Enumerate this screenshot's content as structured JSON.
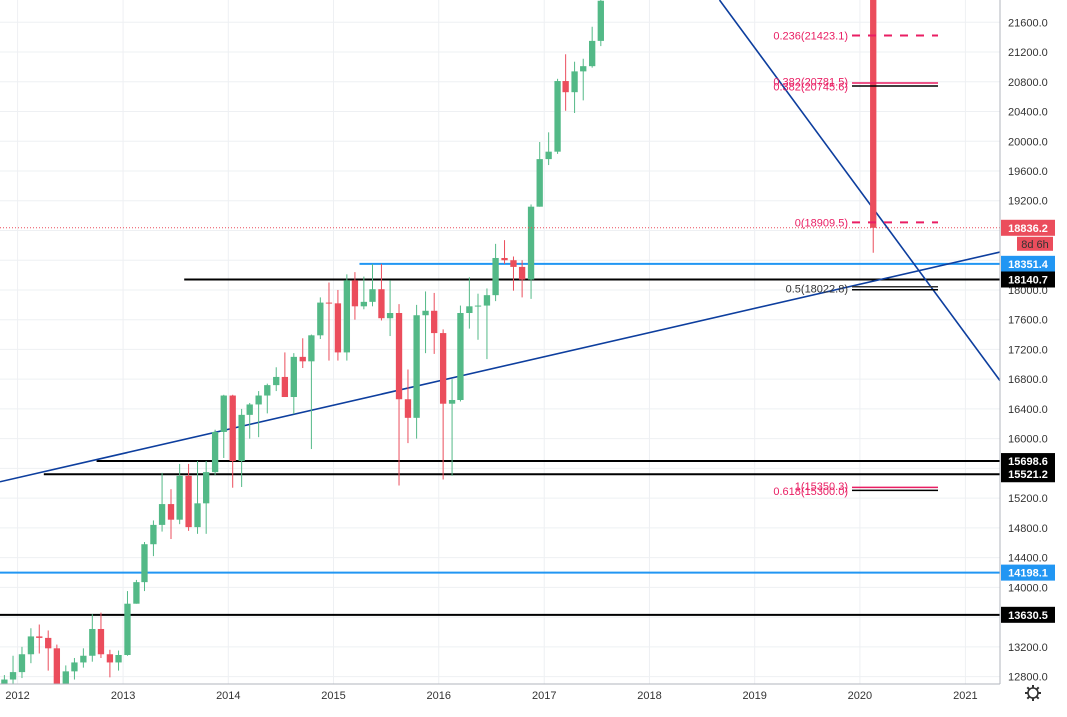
{
  "chart_data": {
    "type": "candlestick",
    "title": "",
    "x_range": [
      "2011-11-01",
      "2021-05-01"
    ],
    "y_range": [
      12700,
      21900
    ],
    "x_ticks": [
      {
        "label": "2012",
        "date": "2012-01-01"
      },
      {
        "label": "2013",
        "date": "2013-01-01"
      },
      {
        "label": "2014",
        "date": "2014-01-01"
      },
      {
        "label": "2015",
        "date": "2015-01-01"
      },
      {
        "label": "2016",
        "date": "2016-01-01"
      },
      {
        "label": "2017",
        "date": "2017-01-01"
      },
      {
        "label": "2018",
        "date": "2018-01-01"
      },
      {
        "label": "2019",
        "date": "2019-01-01"
      },
      {
        "label": "2020",
        "date": "2020-01-01"
      },
      {
        "label": "2021",
        "date": "2021-01-01"
      }
    ],
    "y_ticks": [
      "12800.0",
      "13200.0",
      "13600.0",
      "14000.0",
      "14400.0",
      "14800.0",
      "15200.0",
      "15600.0",
      "16000.0",
      "16400.0",
      "16800.0",
      "17200.0",
      "17600.0",
      "18000.0",
      "18400.0",
      "18800.0",
      "19200.0",
      "19600.0",
      "20000.0",
      "20400.0",
      "20800.0",
      "21200.0",
      "21600.0"
    ],
    "grid": true,
    "colors": {
      "up": "#53b987",
      "down": "#eb4d5c",
      "trend": "#0d3e9e",
      "level_blue": "#2196f3",
      "level_black": "#000000",
      "fib": "#e91e63"
    },
    "candles": [
      {
        "date": "2011-11-01",
        "o": 12450,
        "h": 12820,
        "l": 12350,
        "c": 12760
      },
      {
        "date": "2011-12-01",
        "o": 12760,
        "h": 13080,
        "l": 12500,
        "c": 12860
      },
      {
        "date": "2012-01-01",
        "o": 12860,
        "h": 13200,
        "l": 12780,
        "c": 13100
      },
      {
        "date": "2012-02-01",
        "o": 13100,
        "h": 13450,
        "l": 12980,
        "c": 13340
      },
      {
        "date": "2012-03-01",
        "o": 13340,
        "h": 13500,
        "l": 13110,
        "c": 13320
      },
      {
        "date": "2012-04-01",
        "o": 13320,
        "h": 13420,
        "l": 12880,
        "c": 13180
      },
      {
        "date": "2012-05-01",
        "o": 13180,
        "h": 13230,
        "l": 12450,
        "c": 12600
      },
      {
        "date": "2012-06-01",
        "o": 12600,
        "h": 12950,
        "l": 12350,
        "c": 12870
      },
      {
        "date": "2012-07-01",
        "o": 12870,
        "h": 13050,
        "l": 12760,
        "c": 12990
      },
      {
        "date": "2012-08-01",
        "o": 12990,
        "h": 13180,
        "l": 12920,
        "c": 13080
      },
      {
        "date": "2012-09-01",
        "o": 13080,
        "h": 13640,
        "l": 13000,
        "c": 13440
      },
      {
        "date": "2012-10-01",
        "o": 13440,
        "h": 13660,
        "l": 13050,
        "c": 13100
      },
      {
        "date": "2012-11-01",
        "o": 13100,
        "h": 13160,
        "l": 12790,
        "c": 12990
      },
      {
        "date": "2012-12-01",
        "o": 12990,
        "h": 13150,
        "l": 12880,
        "c": 13090
      },
      {
        "date": "2013-01-01",
        "o": 13090,
        "h": 13950,
        "l": 13080,
        "c": 13780
      },
      {
        "date": "2013-02-01",
        "o": 13780,
        "h": 14100,
        "l": 13780,
        "c": 14070
      },
      {
        "date": "2013-03-01",
        "o": 14070,
        "h": 14610,
        "l": 13950,
        "c": 14580
      },
      {
        "date": "2013-04-01",
        "o": 14580,
        "h": 14900,
        "l": 14420,
        "c": 14840
      },
      {
        "date": "2013-05-01",
        "o": 14840,
        "h": 15540,
        "l": 14750,
        "c": 15120
      },
      {
        "date": "2013-06-01",
        "o": 15120,
        "h": 15320,
        "l": 14650,
        "c": 14910
      },
      {
        "date": "2013-07-01",
        "o": 14910,
        "h": 15660,
        "l": 14850,
        "c": 15500
      },
      {
        "date": "2013-08-01",
        "o": 15500,
        "h": 15660,
        "l": 14760,
        "c": 14810
      },
      {
        "date": "2013-09-01",
        "o": 14810,
        "h": 15700,
        "l": 14720,
        "c": 15130
      },
      {
        "date": "2013-10-01",
        "o": 15130,
        "h": 15700,
        "l": 14720,
        "c": 15550
      },
      {
        "date": "2013-11-01",
        "o": 15550,
        "h": 16120,
        "l": 15510,
        "c": 16090
      },
      {
        "date": "2013-12-01",
        "o": 16090,
        "h": 16590,
        "l": 15740,
        "c": 16580
      },
      {
        "date": "2014-01-01",
        "o": 16580,
        "h": 16590,
        "l": 15340,
        "c": 15700
      },
      {
        "date": "2014-02-01",
        "o": 15700,
        "h": 16400,
        "l": 15350,
        "c": 16320
      },
      {
        "date": "2014-03-01",
        "o": 16320,
        "h": 16480,
        "l": 16000,
        "c": 16460
      },
      {
        "date": "2014-04-01",
        "o": 16460,
        "h": 16640,
        "l": 16020,
        "c": 16580
      },
      {
        "date": "2014-05-01",
        "o": 16580,
        "h": 16740,
        "l": 16340,
        "c": 16720
      },
      {
        "date": "2014-06-01",
        "o": 16720,
        "h": 16960,
        "l": 16640,
        "c": 16830
      },
      {
        "date": "2014-07-01",
        "o": 16830,
        "h": 17160,
        "l": 16560,
        "c": 16560
      },
      {
        "date": "2014-08-01",
        "o": 16560,
        "h": 17150,
        "l": 16330,
        "c": 17100
      },
      {
        "date": "2014-09-01",
        "o": 17100,
        "h": 17350,
        "l": 16950,
        "c": 17040
      },
      {
        "date": "2014-10-01",
        "o": 17040,
        "h": 17400,
        "l": 15860,
        "c": 17390
      },
      {
        "date": "2014-11-01",
        "o": 17390,
        "h": 17900,
        "l": 17340,
        "c": 17830
      },
      {
        "date": "2014-12-01",
        "o": 17830,
        "h": 18100,
        "l": 17050,
        "c": 17820
      },
      {
        "date": "2015-01-01",
        "o": 17820,
        "h": 18000,
        "l": 17050,
        "c": 17160
      },
      {
        "date": "2015-02-01",
        "o": 17160,
        "h": 18210,
        "l": 17050,
        "c": 18130
      },
      {
        "date": "2015-03-01",
        "o": 18130,
        "h": 18240,
        "l": 17600,
        "c": 17780
      },
      {
        "date": "2015-04-01",
        "o": 17780,
        "h": 18180,
        "l": 17740,
        "c": 17840
      },
      {
        "date": "2015-05-01",
        "o": 17840,
        "h": 18350,
        "l": 17780,
        "c": 18010
      },
      {
        "date": "2015-06-01",
        "o": 18010,
        "h": 18350,
        "l": 17590,
        "c": 17620
      },
      {
        "date": "2015-07-01",
        "o": 17620,
        "h": 18130,
        "l": 17380,
        "c": 17690
      },
      {
        "date": "2015-08-01",
        "o": 17690,
        "h": 17810,
        "l": 15370,
        "c": 16530
      },
      {
        "date": "2015-09-01",
        "o": 16530,
        "h": 16930,
        "l": 15940,
        "c": 16280
      },
      {
        "date": "2015-10-01",
        "o": 16280,
        "h": 17800,
        "l": 16000,
        "c": 17660
      },
      {
        "date": "2015-11-01",
        "o": 17660,
        "h": 17980,
        "l": 17150,
        "c": 17720
      },
      {
        "date": "2015-12-01",
        "o": 17720,
        "h": 17960,
        "l": 17140,
        "c": 17420
      },
      {
        "date": "2016-01-01",
        "o": 17420,
        "h": 17470,
        "l": 15450,
        "c": 16470
      },
      {
        "date": "2016-02-01",
        "o": 16470,
        "h": 16800,
        "l": 15500,
        "c": 16520
      },
      {
        "date": "2016-03-01",
        "o": 16520,
        "h": 17790,
        "l": 16500,
        "c": 17690
      },
      {
        "date": "2016-04-01",
        "o": 17690,
        "h": 18170,
        "l": 17480,
        "c": 17780
      },
      {
        "date": "2016-05-01",
        "o": 17780,
        "h": 17950,
        "l": 17330,
        "c": 17790
      },
      {
        "date": "2016-06-01",
        "o": 17790,
        "h": 18020,
        "l": 17070,
        "c": 17930
      },
      {
        "date": "2016-07-01",
        "o": 17930,
        "h": 18620,
        "l": 17850,
        "c": 18430
      },
      {
        "date": "2016-08-01",
        "o": 18430,
        "h": 18670,
        "l": 18350,
        "c": 18400
      },
      {
        "date": "2016-09-01",
        "o": 18400,
        "h": 18450,
        "l": 17990,
        "c": 18310
      },
      {
        "date": "2016-10-01",
        "o": 18310,
        "h": 18400,
        "l": 17900,
        "c": 18140
      },
      {
        "date": "2016-11-01",
        "o": 18140,
        "h": 19150,
        "l": 17880,
        "c": 19120
      },
      {
        "date": "2016-12-01",
        "o": 19120,
        "h": 19990,
        "l": 19120,
        "c": 19760
      },
      {
        "date": "2017-01-01",
        "o": 19760,
        "h": 20120,
        "l": 19680,
        "c": 19860
      },
      {
        "date": "2017-02-01",
        "o": 19860,
        "h": 20840,
        "l": 19830,
        "c": 20810
      },
      {
        "date": "2017-03-01",
        "o": 20810,
        "h": 21170,
        "l": 20410,
        "c": 20660
      },
      {
        "date": "2017-04-01",
        "o": 20660,
        "h": 21070,
        "l": 20380,
        "c": 20940
      },
      {
        "date": "2017-05-01",
        "o": 20940,
        "h": 21110,
        "l": 20550,
        "c": 21010
      },
      {
        "date": "2017-06-01",
        "o": 21010,
        "h": 21540,
        "l": 20990,
        "c": 21350
      },
      {
        "date": "2017-07-01",
        "o": 21350,
        "h": 21950,
        "l": 21280,
        "c": 21890
      }
    ],
    "feb_2020_candle": {
      "date": "2020-02-01",
      "o": 21900,
      "h": 21900,
      "l": 18500,
      "c": 18836.2
    },
    "trendlines": [
      {
        "from": [
          "2011-11-01",
          15420
        ],
        "to": [
          "2021-05-01",
          18510
        ]
      },
      {
        "from": [
          "2018-09-01",
          21900
        ],
        "to": [
          "2021-05-01",
          16780
        ]
      }
    ],
    "levels": [
      {
        "value": 18351.4,
        "label": "18351.4",
        "color": "#2196f3",
        "from": "2015-04-01"
      },
      {
        "value": 18140.7,
        "label": "18140.7",
        "color": "#000000",
        "from": "2013-08-01"
      },
      {
        "value": 15698.6,
        "label": "15698.6",
        "color": "#000000",
        "from": "2012-10-01"
      },
      {
        "value": 15521.2,
        "label": "15521.2",
        "color": "#000000",
        "from": "2012-04-01"
      },
      {
        "value": 14198.1,
        "label": "14198.1",
        "color": "#2196f3",
        "from": "2011-11-01"
      },
      {
        "value": 13630.5,
        "label": "13630.5",
        "color": "#000000",
        "from": "2011-11-01"
      }
    ],
    "price_tag": {
      "value": "18836.2",
      "countdown": "8d 6h"
    },
    "fib_groups": [
      {
        "labels": [
          "0.236(21423.1)"
        ],
        "value": 21423.1,
        "dashed": true,
        "color": "#e91e63"
      },
      {
        "labels": [
          "0.382(20781.5)",
          "0.382(20745.6)"
        ],
        "value": 20763,
        "dashed": false,
        "color": "#e91e63"
      },
      {
        "labels": [
          "0(18909.5)"
        ],
        "value": 18909.5,
        "dashed": true,
        "color": "#e91e63"
      },
      {
        "labels": [
          "0.5(18022.8)"
        ],
        "value": 18022.8,
        "dashed": false,
        "color": "#333333"
      },
      {
        "labels": [
          "1(15350.3)",
          "0.618(15300.0)"
        ],
        "value": 15325,
        "dashed": false,
        "color": "#e91e63"
      }
    ]
  }
}
